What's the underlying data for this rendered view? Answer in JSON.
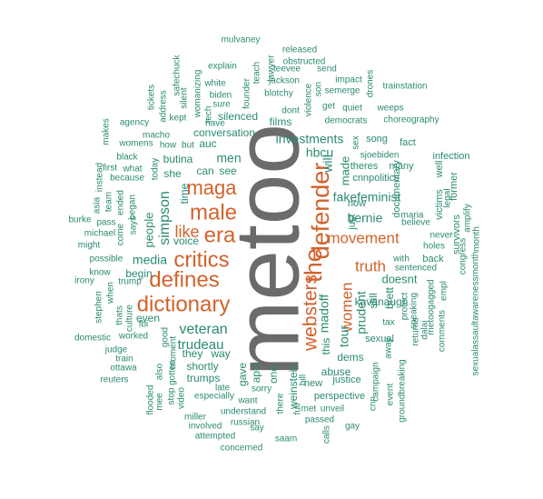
{
  "colors": {
    "highest": "#6b6b6b",
    "high": "#d2622b",
    "standard": "#2a8a73",
    "background": "#ffffff"
  },
  "words": [
    {
      "text": "metoo",
      "tier": "highest"
    },
    {
      "text": "defender",
      "tier": "high"
    },
    {
      "text": "the",
      "tier": "high"
    },
    {
      "text": "dictionary",
      "tier": "high"
    },
    {
      "text": "defines",
      "tier": "high"
    },
    {
      "text": "critics",
      "tier": "high"
    },
    {
      "text": "male",
      "tier": "high"
    },
    {
      "text": "era",
      "tier": "high"
    },
    {
      "text": "maga",
      "tier": "high"
    },
    {
      "text": "websters",
      "tier": "high"
    },
    {
      "text": "like",
      "tier": "high"
    },
    {
      "text": "women",
      "tier": "high"
    },
    {
      "text": "movement",
      "tier": "high"
    },
    {
      "text": "truth",
      "tier": "high"
    },
    {
      "text": "simpson",
      "tier": "standard"
    },
    {
      "text": "veteran",
      "tier": "standard"
    },
    {
      "text": "trudeau",
      "tier": "standard"
    },
    {
      "text": "fakefeminist",
      "tier": "standard"
    },
    {
      "text": "bernie",
      "tier": "standard"
    },
    {
      "text": "madoff",
      "tier": "standard"
    },
    {
      "text": "hbcu",
      "tier": "standard"
    },
    {
      "text": "investments",
      "tier": "standard"
    },
    {
      "text": "will",
      "tier": "standard"
    },
    {
      "text": "made",
      "tier": "standard"
    },
    {
      "text": "prudent",
      "tier": "standard"
    },
    {
      "text": "tour",
      "tier": "standard"
    },
    {
      "text": "men",
      "tier": "standard"
    },
    {
      "text": "media",
      "tier": "standard"
    },
    {
      "text": "people",
      "tier": "standard"
    },
    {
      "text": "kavanaugh",
      "tier": "standard"
    },
    {
      "text": "doesnt",
      "tier": "standard"
    },
    {
      "text": "dems",
      "tier": "standard"
    },
    {
      "text": "abuse",
      "tier": "standard"
    },
    {
      "text": "can",
      "tier": "standard"
    },
    {
      "text": "see",
      "tier": "standard"
    },
    {
      "text": "butina",
      "tier": "standard"
    },
    {
      "text": "she",
      "tier": "standard"
    },
    {
      "text": "time",
      "tier": "standard"
    },
    {
      "text": "voice",
      "tier": "standard"
    },
    {
      "text": "begin",
      "tier": "standard"
    },
    {
      "text": "even",
      "tier": "standard"
    },
    {
      "text": "shortly",
      "tier": "standard"
    },
    {
      "text": "trumps",
      "tier": "standard"
    },
    {
      "text": "they",
      "tier": "standard"
    },
    {
      "text": "way",
      "tier": "standard"
    },
    {
      "text": "gave",
      "tier": "standard"
    },
    {
      "text": "april",
      "tier": "standard"
    },
    {
      "text": "one",
      "tier": "standard"
    },
    {
      "text": "weinstein",
      "tier": "standard"
    },
    {
      "text": "new",
      "tier": "standard"
    },
    {
      "text": "this",
      "tier": "standard"
    },
    {
      "text": "still",
      "tier": "standard"
    },
    {
      "text": "brett",
      "tier": "standard"
    },
    {
      "text": "just",
      "tier": "standard"
    },
    {
      "text": "now",
      "tier": "standard"
    },
    {
      "text": "sexual",
      "tier": "standard"
    },
    {
      "text": "justice",
      "tier": "standard"
    },
    {
      "text": "perspective",
      "tier": "standard"
    },
    {
      "text": "films",
      "tier": "standard"
    },
    {
      "text": "conversation",
      "tier": "standard"
    },
    {
      "text": "auc",
      "tier": "standard"
    },
    {
      "text": "silenced",
      "tier": "standard"
    },
    {
      "text": "cnnpolitics",
      "tier": "standard"
    },
    {
      "text": "theres",
      "tier": "standard"
    },
    {
      "text": "sjoebiden",
      "tier": "standard"
    },
    {
      "text": "song",
      "tier": "standard"
    },
    {
      "text": "fact",
      "tier": "standard"
    },
    {
      "text": "many",
      "tier": "standard"
    },
    {
      "text": "infection",
      "tier": "standard"
    },
    {
      "text": "documentary",
      "tier": "standard"
    },
    {
      "text": "former",
      "tier": "standard"
    },
    {
      "text": "legal",
      "tier": "standard"
    },
    {
      "text": "victims",
      "tier": "standard"
    },
    {
      "text": "well",
      "tier": "standard"
    },
    {
      "text": "maria",
      "tier": "standard"
    },
    {
      "text": "believe",
      "tier": "standard"
    },
    {
      "text": "never",
      "tier": "standard"
    },
    {
      "text": "holes",
      "tier": "standard"
    },
    {
      "text": "back",
      "tier": "standard"
    },
    {
      "text": "with",
      "tier": "standard"
    },
    {
      "text": "sentenced",
      "tier": "standard"
    },
    {
      "text": "survivors",
      "tier": "standard"
    },
    {
      "text": "amplify",
      "tier": "standard"
    },
    {
      "text": "month",
      "tier": "standard"
    },
    {
      "text": "sexualassaultawarenessmonth",
      "tier": "standard"
    },
    {
      "text": "congress",
      "tier": "standard"
    },
    {
      "text": "empl",
      "tier": "standard"
    },
    {
      "text": "speaking",
      "tier": "standard"
    },
    {
      "text": "returns",
      "tier": "standard"
    },
    {
      "text": "dalai",
      "tier": "standard"
    },
    {
      "text": "metoogagged",
      "tier": "standard"
    },
    {
      "text": "protect",
      "tier": "standard"
    },
    {
      "text": "tax",
      "tier": "standard"
    },
    {
      "text": "comments",
      "tier": "standard"
    },
    {
      "text": "campaign",
      "tier": "standard"
    },
    {
      "text": "away",
      "tier": "standard"
    },
    {
      "text": "event",
      "tier": "standard"
    },
    {
      "text": "groundbreaking",
      "tier": "standard"
    },
    {
      "text": "cnn",
      "tier": "standard"
    },
    {
      "text": "gay",
      "tier": "standard"
    },
    {
      "text": "calls",
      "tier": "standard"
    },
    {
      "text": "unveil",
      "tier": "standard"
    },
    {
      "text": "passed",
      "tier": "standard"
    },
    {
      "text": "met",
      "tier": "standard"
    },
    {
      "text": "bill",
      "tier": "standard"
    },
    {
      "text": "full",
      "tier": "standard"
    },
    {
      "text": "there",
      "tier": "standard"
    },
    {
      "text": "saam",
      "tier": "standard"
    },
    {
      "text": "sorry",
      "tier": "standard"
    },
    {
      "text": "want",
      "tier": "standard"
    },
    {
      "text": "understand",
      "tier": "standard"
    },
    {
      "text": "russian",
      "tier": "standard"
    },
    {
      "text": "say",
      "tier": "standard"
    },
    {
      "text": "concerned",
      "tier": "standard"
    },
    {
      "text": "attempted",
      "tier": "standard"
    },
    {
      "text": "involved",
      "tier": "standard"
    },
    {
      "text": "miller",
      "tier": "standard"
    },
    {
      "text": "especially",
      "tier": "standard"
    },
    {
      "text": "late",
      "tier": "standard"
    },
    {
      "text": "video",
      "tier": "standard"
    },
    {
      "text": "stop",
      "tier": "standard"
    },
    {
      "text": "mee",
      "tier": "standard"
    },
    {
      "text": "flooded",
      "tier": "standard"
    },
    {
      "text": "also",
      "tier": "standard"
    },
    {
      "text": "gotten",
      "tier": "standard"
    },
    {
      "text": "moment",
      "tier": "standard"
    },
    {
      "text": "good",
      "tier": "standard"
    },
    {
      "text": "reuters",
      "tier": "standard"
    },
    {
      "text": "ottawa",
      "tier": "standard"
    },
    {
      "text": "train",
      "tier": "standard"
    },
    {
      "text": "judge",
      "tier": "standard"
    },
    {
      "text": "worked",
      "tier": "standard"
    },
    {
      "text": "fbi",
      "tier": "standard"
    },
    {
      "text": "domestic",
      "tier": "standard"
    },
    {
      "text": "thats",
      "tier": "standard"
    },
    {
      "text": "culture",
      "tier": "standard"
    },
    {
      "text": "stephen",
      "tier": "standard"
    },
    {
      "text": "when",
      "tier": "standard"
    },
    {
      "text": "irony",
      "tier": "standard"
    },
    {
      "text": "know",
      "tier": "standard"
    },
    {
      "text": "trump",
      "tier": "standard"
    },
    {
      "text": "possible",
      "tier": "standard"
    },
    {
      "text": "might",
      "tier": "standard"
    },
    {
      "text": "michael",
      "tier": "standard"
    },
    {
      "text": "burke",
      "tier": "standard"
    },
    {
      "text": "pass",
      "tier": "standard"
    },
    {
      "text": "come",
      "tier": "standard"
    },
    {
      "text": "says",
      "tier": "standard"
    },
    {
      "text": "began",
      "tier": "standard"
    },
    {
      "text": "ended",
      "tier": "standard"
    },
    {
      "text": "because",
      "tier": "standard"
    },
    {
      "text": "team",
      "tier": "standard"
    },
    {
      "text": "asia",
      "tier": "standard"
    },
    {
      "text": "instead",
      "tier": "standard"
    },
    {
      "text": "first",
      "tier": "standard"
    },
    {
      "text": "what",
      "tier": "standard"
    },
    {
      "text": "today",
      "tier": "standard"
    },
    {
      "text": "black",
      "tier": "standard"
    },
    {
      "text": "womens",
      "tier": "standard"
    },
    {
      "text": "how",
      "tier": "standard"
    },
    {
      "text": "but",
      "tier": "standard"
    },
    {
      "text": "macho",
      "tier": "standard"
    },
    {
      "text": "makes",
      "tier": "standard"
    },
    {
      "text": "agency",
      "tier": "standard"
    },
    {
      "text": "kept",
      "tier": "standard"
    },
    {
      "text": "tickets",
      "tier": "standard"
    },
    {
      "text": "address",
      "tier": "standard"
    },
    {
      "text": "silent",
      "tier": "standard"
    },
    {
      "text": "safechuck",
      "tier": "standard"
    },
    {
      "text": "womanizing",
      "tier": "standard"
    },
    {
      "text": "explain",
      "tier": "standard"
    },
    {
      "text": "white",
      "tier": "standard"
    },
    {
      "text": "biden",
      "tier": "standard"
    },
    {
      "text": "sure",
      "tier": "standard"
    },
    {
      "text": "have",
      "tier": "standard"
    },
    {
      "text": "tech",
      "tier": "standard"
    },
    {
      "text": "mulvaney",
      "tier": "standard"
    },
    {
      "text": "released",
      "tier": "standard"
    },
    {
      "text": "obstructed",
      "tier": "standard"
    },
    {
      "text": "teevee",
      "tier": "standard"
    },
    {
      "text": "send",
      "tier": "standard"
    },
    {
      "text": "lawyer",
      "tier": "standard"
    },
    {
      "text": "teach",
      "tier": "standard"
    },
    {
      "text": "founder",
      "tier": "standard"
    },
    {
      "text": "jackson",
      "tier": "standard"
    },
    {
      "text": "blotchy",
      "tier": "standard"
    },
    {
      "text": "son",
      "tier": "standard"
    },
    {
      "text": "violence",
      "tier": "standard"
    },
    {
      "text": "impact",
      "tier": "standard"
    },
    {
      "text": "semerge",
      "tier": "standard"
    },
    {
      "text": "drones",
      "tier": "standard"
    },
    {
      "text": "trainstation",
      "tier": "standard"
    },
    {
      "text": "dont",
      "tier": "standard"
    },
    {
      "text": "get",
      "tier": "standard"
    },
    {
      "text": "quiet",
      "tier": "standard"
    },
    {
      "text": "weeps",
      "tier": "standard"
    },
    {
      "text": "democrats",
      "tier": "standard"
    },
    {
      "text": "choreography",
      "tier": "standard"
    },
    {
      "text": "sex",
      "tier": "standard"
    }
  ]
}
